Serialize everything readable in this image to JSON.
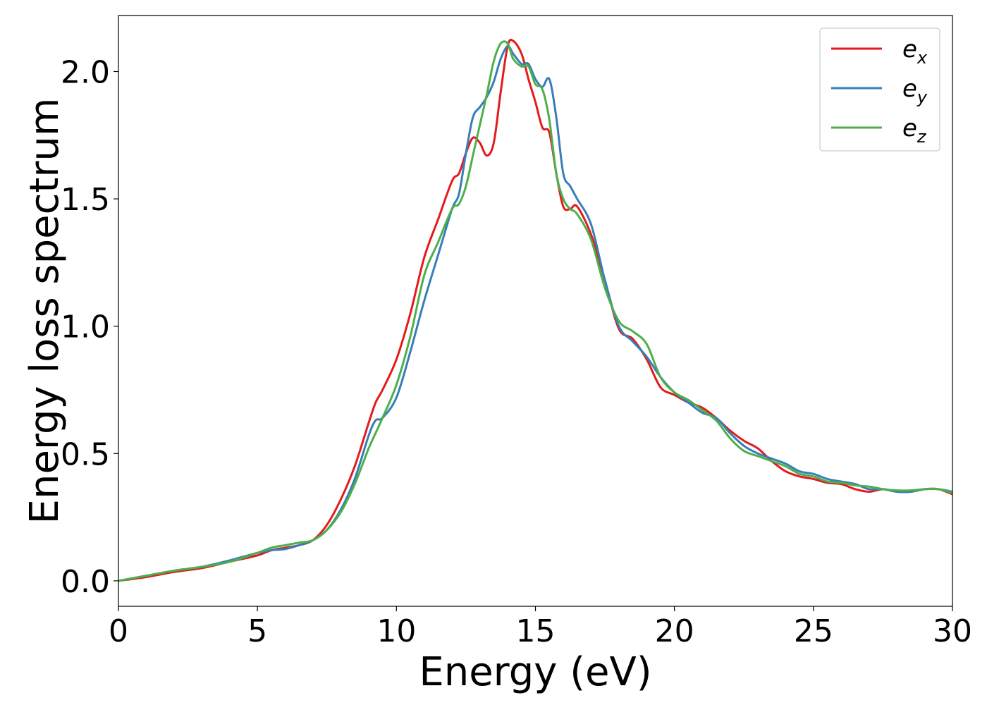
{
  "chart_data": {
    "type": "line",
    "xlabel": "Energy (eV)",
    "ylabel": "Energy loss spectrum",
    "xlim": [
      0,
      30
    ],
    "ylim": [
      -0.1,
      2.22
    ],
    "xticks": [
      0,
      5,
      10,
      15,
      20,
      25,
      30
    ],
    "xtick_labels": [
      "0",
      "5",
      "10",
      "15",
      "20",
      "25",
      "30"
    ],
    "yticks": [
      0.0,
      0.5,
      1.0,
      1.5,
      2.0
    ],
    "ytick_labels": [
      "0.0",
      "0.5",
      "1.0",
      "1.5",
      "2.0"
    ],
    "grid": false,
    "legend_position": "top-right",
    "series": [
      {
        "name": "e",
        "name_sub": "x",
        "color": "#e41a1c",
        "x": [
          0,
          1,
          2,
          3,
          4,
          5,
          5.5,
          6,
          6.5,
          7,
          7.5,
          8,
          8.5,
          9,
          9.25,
          9.5,
          10,
          10.5,
          11,
          11.5,
          12,
          12.25,
          12.5,
          12.75,
          13,
          13.25,
          13.5,
          13.75,
          14,
          14.2,
          14.5,
          14.75,
          15,
          15.25,
          15.5,
          15.75,
          16,
          16.25,
          16.5,
          17,
          17.5,
          18,
          18.5,
          19,
          19.5,
          20,
          20.5,
          21,
          21.5,
          22,
          22.5,
          23,
          23.5,
          24,
          24.5,
          25,
          25.5,
          26,
          26.5,
          27,
          27.5,
          28,
          28.5,
          29,
          29.5,
          30
        ],
        "y": [
          0,
          0.015,
          0.035,
          0.05,
          0.075,
          0.1,
          0.12,
          0.13,
          0.14,
          0.16,
          0.22,
          0.32,
          0.45,
          0.62,
          0.7,
          0.75,
          0.87,
          1.05,
          1.27,
          1.42,
          1.57,
          1.6,
          1.68,
          1.74,
          1.72,
          1.67,
          1.72,
          1.92,
          2.1,
          2.12,
          2.07,
          1.97,
          1.88,
          1.78,
          1.76,
          1.6,
          1.47,
          1.46,
          1.47,
          1.36,
          1.18,
          0.99,
          0.95,
          0.87,
          0.76,
          0.73,
          0.7,
          0.68,
          0.64,
          0.59,
          0.55,
          0.52,
          0.47,
          0.43,
          0.41,
          0.4,
          0.385,
          0.38,
          0.36,
          0.35,
          0.36,
          0.35,
          0.35,
          0.36,
          0.36,
          0.34
        ]
      },
      {
        "name": "e",
        "name_sub": "y",
        "color": "#377eb8",
        "x": [
          0,
          1,
          2,
          3,
          4,
          5,
          5.5,
          6,
          6.5,
          7,
          7.5,
          8,
          8.5,
          9,
          9.25,
          9.5,
          10,
          10.5,
          11,
          11.5,
          12,
          12.25,
          12.5,
          12.75,
          13,
          13.25,
          13.5,
          13.75,
          14,
          14.2,
          14.5,
          14.75,
          15,
          15.25,
          15.5,
          15.75,
          16,
          16.25,
          16.5,
          17,
          17.5,
          18,
          18.5,
          19,
          19.5,
          20,
          20.5,
          21,
          21.5,
          22,
          22.5,
          23,
          23.5,
          24,
          24.5,
          25,
          25.5,
          26,
          26.5,
          27,
          27.5,
          28,
          28.5,
          29,
          29.5,
          30
        ],
        "y": [
          0,
          0.02,
          0.04,
          0.055,
          0.08,
          0.11,
          0.12,
          0.125,
          0.14,
          0.16,
          0.2,
          0.28,
          0.4,
          0.57,
          0.63,
          0.64,
          0.72,
          0.9,
          1.1,
          1.28,
          1.46,
          1.52,
          1.68,
          1.82,
          1.86,
          1.9,
          1.96,
          2.05,
          2.1,
          2.07,
          2.03,
          2.03,
          1.97,
          1.94,
          1.97,
          1.82,
          1.6,
          1.55,
          1.5,
          1.4,
          1.18,
          1.0,
          0.94,
          0.88,
          0.8,
          0.74,
          0.7,
          0.66,
          0.64,
          0.58,
          0.53,
          0.5,
          0.48,
          0.46,
          0.43,
          0.42,
          0.4,
          0.39,
          0.38,
          0.36,
          0.36,
          0.35,
          0.35,
          0.36,
          0.36,
          0.35
        ]
      },
      {
        "name": "e",
        "name_sub": "z",
        "color": "#4daf4a",
        "x": [
          0,
          1,
          2,
          3,
          4,
          5,
          5.5,
          6,
          6.5,
          7,
          7.5,
          8,
          8.5,
          9,
          9.25,
          9.5,
          10,
          10.5,
          11,
          11.5,
          12,
          12.25,
          12.5,
          12.75,
          13,
          13.25,
          13.5,
          13.75,
          14,
          14.2,
          14.5,
          14.75,
          15,
          15.25,
          15.5,
          15.75,
          16,
          16.25,
          16.5,
          17,
          17.5,
          18,
          18.5,
          19,
          19.5,
          20,
          20.5,
          21,
          21.5,
          22,
          22.5,
          23,
          23.5,
          24,
          24.5,
          25,
          25.5,
          26,
          26.5,
          27,
          27.5,
          28,
          28.5,
          29,
          29.5,
          30
        ],
        "y": [
          0,
          0.02,
          0.04,
          0.055,
          0.075,
          0.11,
          0.13,
          0.14,
          0.15,
          0.16,
          0.2,
          0.27,
          0.38,
          0.52,
          0.58,
          0.64,
          0.77,
          0.96,
          1.2,
          1.33,
          1.46,
          1.48,
          1.55,
          1.67,
          1.79,
          1.91,
          2.04,
          2.11,
          2.11,
          2.05,
          2.02,
          2.02,
          1.95,
          1.93,
          1.81,
          1.6,
          1.5,
          1.46,
          1.44,
          1.34,
          1.15,
          1.02,
          0.98,
          0.93,
          0.8,
          0.74,
          0.71,
          0.67,
          0.63,
          0.56,
          0.51,
          0.49,
          0.47,
          0.45,
          0.42,
          0.41,
          0.39,
          0.385,
          0.375,
          0.37,
          0.36,
          0.355,
          0.355,
          0.36,
          0.36,
          0.345
        ]
      }
    ]
  }
}
